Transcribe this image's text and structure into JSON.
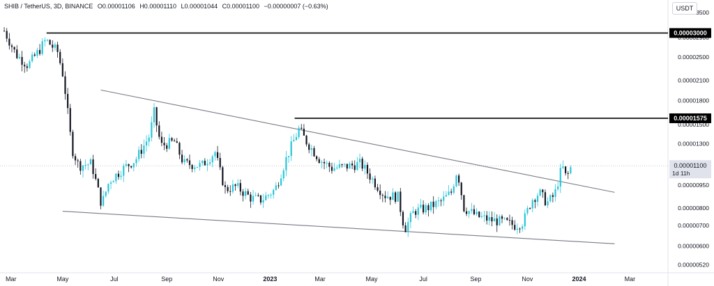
{
  "header": {
    "symbol": "SHIB / TetherUS, 3D, BINANCE",
    "open": "O0.00001106",
    "high": "H0.00001110",
    "low": "L0.00001044",
    "close": "C0.00001100",
    "change": "−0.00000007 (−0.63%)",
    "currency": "USDT"
  },
  "chart_data": {
    "type": "candlestick",
    "ylim": [
      4.9e-06,
      3.85e-05
    ],
    "y_ticks": [
      "0.00003500",
      "0.00002900",
      "0.00002500",
      "0.00002100",
      "0.00001800",
      "0.00001500",
      "0.00001300",
      "0.00001100",
      "0.00000950",
      "0.00000800",
      "0.00000700",
      "0.00000600",
      "0.00000520"
    ],
    "x_ticks": [
      "Mar",
      "May",
      "Jul",
      "Sep",
      "Nov",
      "2023",
      "Mar",
      "May",
      "Jul",
      "Sep",
      "Nov",
      "2024",
      "Mar"
    ],
    "price_labels": [
      {
        "text": "0.00003000"
      },
      {
        "text": "0.00001575"
      },
      {
        "text": "0.00001100",
        "countdown": "1d 11h"
      }
    ],
    "horizontal_lines": [
      {
        "value": 3e-05
      },
      {
        "value": 1.575e-05
      }
    ],
    "trendlines": [
      {
        "from": [
          "Jun 2022",
          1.95e-05
        ],
        "to": [
          "Feb 2024",
          9e-06
        ]
      },
      {
        "from": [
          "May 2022",
          7.8e-06
        ],
        "to": [
          "Feb 2024",
          6.1e-06
        ]
      }
    ],
    "colors": {
      "up": "#26c6da",
      "down": "#131722",
      "line": "#000000",
      "trend": "#787b86"
    },
    "series": [
      {
        "date": "2022-02-21",
        "close": 3.05e-05
      },
      {
        "date": "2022-03-07",
        "close": 2.55e-05
      },
      {
        "date": "2022-03-21",
        "close": 2.35e-05
      },
      {
        "date": "2022-04-04",
        "close": 2.65e-05
      },
      {
        "date": "2022-04-11",
        "close": 2.85e-05
      },
      {
        "date": "2022-04-25",
        "close": 2.6e-05
      },
      {
        "date": "2022-05-02",
        "close": 2.15e-05
      },
      {
        "date": "2022-05-12",
        "close": 1.25e-05
      },
      {
        "date": "2022-05-20",
        "close": 1.1e-05
      },
      {
        "date": "2022-06-04",
        "close": 1.12e-05
      },
      {
        "date": "2022-06-16",
        "close": 8.2e-06
      },
      {
        "date": "2022-06-25",
        "close": 9.8e-06
      },
      {
        "date": "2022-07-12",
        "close": 1.08e-05
      },
      {
        "date": "2022-07-26",
        "close": 1.15e-05
      },
      {
        "date": "2022-08-13",
        "close": 1.4e-05
      },
      {
        "date": "2022-08-16",
        "close": 1.7e-05
      },
      {
        "date": "2022-08-25",
        "close": 1.28e-05
      },
      {
        "date": "2022-09-10",
        "close": 1.32e-05
      },
      {
        "date": "2022-09-21",
        "close": 1.12e-05
      },
      {
        "date": "2022-10-12",
        "close": 1.1e-05
      },
      {
        "date": "2022-10-28",
        "close": 1.22e-05
      },
      {
        "date": "2022-11-03",
        "close": 1.05e-05
      },
      {
        "date": "2022-11-09",
        "close": 9.2e-06
      },
      {
        "date": "2022-11-22",
        "close": 9.4e-06
      },
      {
        "date": "2022-12-10",
        "close": 8.6e-06
      },
      {
        "date": "2022-12-22",
        "close": 8.5e-06
      },
      {
        "date": "2023-01-07",
        "close": 9.2e-06
      },
      {
        "date": "2023-01-22",
        "close": 1.2e-05
      },
      {
        "date": "2023-02-04",
        "close": 1.45e-05
      },
      {
        "date": "2023-02-13",
        "close": 1.32e-05
      },
      {
        "date": "2023-03-01",
        "close": 1.15e-05
      },
      {
        "date": "2023-03-15",
        "close": 1.08e-05
      },
      {
        "date": "2023-04-06",
        "close": 1.1e-05
      },
      {
        "date": "2023-04-18",
        "close": 1.12e-05
      },
      {
        "date": "2023-05-01",
        "close": 1e-05
      },
      {
        "date": "2023-05-16",
        "close": 8.8e-06
      },
      {
        "date": "2023-06-01",
        "close": 8.7e-06
      },
      {
        "date": "2023-06-09",
        "close": 6.8e-06
      },
      {
        "date": "2023-06-20",
        "close": 7.8e-06
      },
      {
        "date": "2023-07-06",
        "close": 8e-06
      },
      {
        "date": "2023-07-22",
        "close": 8.4e-06
      },
      {
        "date": "2023-08-03",
        "close": 9e-06
      },
      {
        "date": "2023-08-10",
        "close": 1.07e-05
      },
      {
        "date": "2023-08-18",
        "close": 8e-06
      },
      {
        "date": "2023-09-03",
        "close": 7.5e-06
      },
      {
        "date": "2023-09-18",
        "close": 7.3e-06
      },
      {
        "date": "2023-10-03",
        "close": 7.2e-06
      },
      {
        "date": "2023-10-18",
        "close": 7e-06
      },
      {
        "date": "2023-10-27",
        "close": 7.2e-06
      },
      {
        "date": "2023-11-06",
        "close": 8.5e-06
      },
      {
        "date": "2023-11-15",
        "close": 9e-06
      },
      {
        "date": "2023-11-24",
        "close": 8.3e-06
      },
      {
        "date": "2023-12-03",
        "close": 8.8e-06
      },
      {
        "date": "2023-12-12",
        "close": 1.1e-05
      },
      {
        "date": "2023-12-17",
        "close": 1e-05
      },
      {
        "date": "2023-12-23",
        "close": 1.1e-05
      }
    ]
  }
}
